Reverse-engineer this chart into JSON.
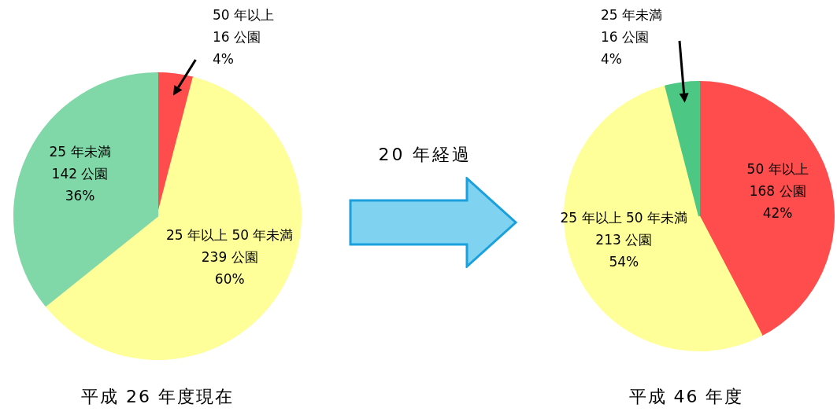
{
  "chart_data": [
    {
      "type": "pie",
      "title": "平成 26 年度現在",
      "categories": [
        "50 年以上",
        "25 年以上 50 年未満",
        "25 年未満"
      ],
      "values": [
        16,
        239,
        142
      ],
      "colors": [
        "#ff4d4d",
        "#ffff99",
        "#80d8a8"
      ],
      "value_labels": [
        "16 公園\n4%",
        "239 公園\n60%",
        "142 公園\n36%"
      ],
      "annotations": [
        "20 年経過"
      ]
    },
    {
      "type": "pie",
      "title": "平成 46 年度",
      "categories": [
        "50 年以上",
        "25 年以上 50 年未満",
        "25 年未満"
      ],
      "values": [
        168,
        213,
        16
      ],
      "colors": [
        "#ff4d4d",
        "#ffff99",
        "#4cc884"
      ],
      "value_labels": [
        "168 公園\n42%",
        "213 公園\n54%",
        "16 公園\n4%"
      ]
    }
  ]
}
